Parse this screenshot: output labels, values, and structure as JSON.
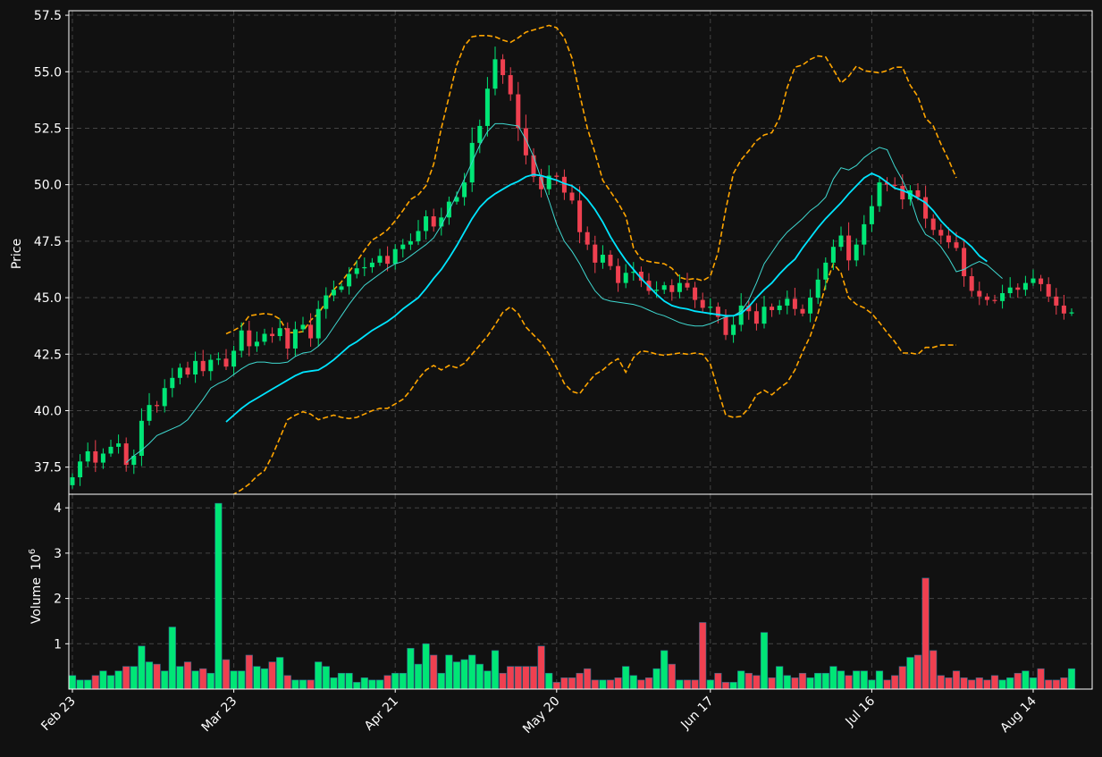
{
  "chart_data": {
    "type": "candlestick",
    "subtype": "ohlc-with-volume-and-bollinger",
    "grid": true,
    "legend": "none",
    "colors": {
      "background": "#111111",
      "up": "#00e676",
      "down": "#ef4050",
      "ma_slow": "#00e5ff",
      "ma_fast": "#3fd8d0",
      "bands": "#ffa500",
      "axis": "#ffffff",
      "grid": "#444444"
    },
    "price_panel": {
      "ylabel": "Price",
      "ylim": [
        36.3,
        57.7
      ],
      "yticks": [
        "37.5",
        "40.0",
        "42.5",
        "45.0",
        "47.5",
        "50.0",
        "52.5",
        "55.0",
        "57.5"
      ],
      "ytick_values": [
        37.5,
        40.0,
        42.5,
        45.0,
        47.5,
        50.0,
        52.5,
        55.0,
        57.5
      ]
    },
    "volume_panel": {
      "ylabel": "Volume",
      "ylabel_exponent": "10",
      "ylabel_exponent_power": "6",
      "ylim": [
        0,
        4.3
      ],
      "yticks": [
        "1",
        "2",
        "3",
        "4"
      ],
      "ytick_values": [
        1,
        2,
        3,
        4
      ]
    },
    "x_ticks": [
      {
        "label": "Feb 23",
        "index": 0
      },
      {
        "label": "Mar 23",
        "index": 21
      },
      {
        "label": "Apr 21",
        "index": 42
      },
      {
        "label": "May 20",
        "index": 63
      },
      {
        "label": "Jun 17",
        "index": 83
      },
      {
        "label": "Jul 16",
        "index": 104
      },
      {
        "label": "Aug 14",
        "index": 125
      }
    ],
    "n_bars": 131,
    "close": [
      37.05,
      37.75,
      38.2,
      37.7,
      38.1,
      38.4,
      38.55,
      37.6,
      38.0,
      39.55,
      40.25,
      40.2,
      41.0,
      41.45,
      41.9,
      41.6,
      42.2,
      41.75,
      42.25,
      42.3,
      41.95,
      42.65,
      43.55,
      42.85,
      43.05,
      43.4,
      43.3,
      43.65,
      42.75,
      43.6,
      43.8,
      43.2,
      44.5,
      45.1,
      45.35,
      45.5,
      46.05,
      46.3,
      46.35,
      46.55,
      46.85,
      46.5,
      47.15,
      47.35,
      47.5,
      47.95,
      48.6,
      48.15,
      48.55,
      49.25,
      49.45,
      50.1,
      51.85,
      52.6,
      54.25,
      55.55,
      54.85,
      54.0,
      52.5,
      51.3,
      50.35,
      49.8,
      50.4,
      50.35,
      49.65,
      49.3,
      47.9,
      47.35,
      46.55,
      46.9,
      46.4,
      45.65,
      46.1,
      46.15,
      45.75,
      45.3,
      45.35,
      45.55,
      45.25,
      45.65,
      45.45,
      44.9,
      44.55,
      44.6,
      44.15,
      43.35,
      43.8,
      44.65,
      44.4,
      43.85,
      44.6,
      44.45,
      44.65,
      44.95,
      44.5,
      44.3,
      45.0,
      45.8,
      46.55,
      47.25,
      47.75,
      46.65,
      47.35,
      48.25,
      49.05,
      50.1,
      50.0,
      49.95,
      49.35,
      49.75,
      49.45,
      48.5,
      48.0,
      47.75,
      47.45,
      47.2,
      45.95,
      45.3,
      45.05,
      44.9,
      44.85,
      45.2,
      45.45,
      45.35,
      45.65,
      45.85,
      45.6,
      45.05,
      44.65,
      44.3,
      44.35
    ],
    "volume_millions": [
      0.3,
      0.2,
      0.2,
      0.3,
      0.4,
      0.3,
      0.4,
      0.5,
      0.5,
      0.95,
      0.6,
      0.55,
      0.4,
      1.37,
      0.5,
      0.6,
      0.4,
      0.45,
      0.35,
      4.1,
      0.65,
      0.4,
      0.4,
      0.75,
      0.5,
      0.45,
      0.6,
      0.7,
      0.3,
      0.2,
      0.2,
      0.2,
      0.6,
      0.5,
      0.25,
      0.35,
      0.35,
      0.15,
      0.25,
      0.2,
      0.2,
      0.3,
      0.35,
      0.35,
      0.9,
      0.55,
      1.0,
      0.75,
      0.35,
      0.75,
      0.6,
      0.65,
      0.75,
      0.55,
      0.4,
      0.85,
      0.35,
      0.5,
      0.5,
      0.5,
      0.5,
      0.95,
      0.35,
      0.15,
      0.25,
      0.25,
      0.35,
      0.45,
      0.2,
      0.2,
      0.2,
      0.25,
      0.5,
      0.3,
      0.2,
      0.25,
      0.45,
      0.85,
      0.55,
      0.2,
      0.2,
      0.2,
      1.47,
      0.2,
      0.35,
      0.15,
      0.15,
      0.4,
      0.35,
      0.3,
      1.25,
      0.25,
      0.5,
      0.3,
      0.25,
      0.35,
      0.25,
      0.35,
      0.35,
      0.5,
      0.4,
      0.3,
      0.4,
      0.4,
      0.2,
      0.4,
      0.2,
      0.3,
      0.5,
      0.7,
      0.75,
      2.45,
      0.85,
      0.3,
      0.25,
      0.4,
      0.25,
      0.2,
      0.25,
      0.2,
      0.3,
      0.2,
      0.25,
      0.35,
      0.4,
      0.25,
      0.45,
      0.2,
      0.2,
      0.25,
      0.45
    ],
    "ma_slow_start": 20,
    "ma_slow": [
      39.5,
      39.8,
      40.1,
      40.35,
      40.55,
      40.75,
      40.95,
      41.15,
      41.35,
      41.55,
      41.7,
      41.75,
      41.8,
      42.0,
      42.25,
      42.55,
      42.85,
      43.05,
      43.3,
      43.55,
      43.75,
      43.95,
      44.2,
      44.5,
      44.75,
      45.0,
      45.4,
      45.85,
      46.25,
      46.75,
      47.3,
      47.9,
      48.5,
      49.0,
      49.35,
      49.6,
      49.8,
      50.0,
      50.15,
      50.35,
      50.45,
      50.4,
      50.3,
      50.2,
      50.05,
      49.95,
      49.7,
      49.35,
      48.9,
      48.35,
      47.7,
      47.15,
      46.65,
      46.25,
      45.85,
      45.5,
      45.15,
      44.85,
      44.65,
      44.55,
      44.5,
      44.4,
      44.35,
      44.3,
      44.25,
      44.2,
      44.2,
      44.3,
      44.6,
      45.0,
      45.35,
      45.65,
      46.05,
      46.4,
      46.7,
      47.2,
      47.65,
      48.1,
      48.5,
      48.85,
      49.2,
      49.6,
      49.95,
      50.3,
      50.5,
      50.35,
      50.1,
      49.85,
      49.75,
      49.6,
      49.4,
      49.2,
      48.85,
      48.4,
      48.05,
      47.75,
      47.55,
      47.25,
      46.85,
      46.6
    ],
    "ma_fast_start": 7,
    "ma_fast": [
      37.7,
      38.0,
      38.25,
      38.55,
      38.9,
      39.05,
      39.2,
      39.35,
      39.6,
      40.05,
      40.5,
      41.0,
      41.2,
      41.35,
      41.6,
      41.85,
      42.05,
      42.15,
      42.15,
      42.1,
      42.1,
      42.15,
      42.4,
      42.55,
      42.6,
      42.85,
      43.2,
      43.7,
      44.2,
      44.7,
      45.15,
      45.55,
      45.8,
      46.05,
      46.3,
      46.5,
      46.6,
      46.85,
      47.1,
      47.35,
      47.65,
      48.2,
      48.85,
      49.55,
      50.25,
      51.0,
      51.75,
      52.35,
      52.7,
      52.7,
      52.65,
      52.6,
      52.0,
      51.25,
      50.25,
      49.3,
      48.25,
      47.5,
      47.05,
      46.5,
      45.85,
      45.3,
      44.95,
      44.85,
      44.8,
      44.75,
      44.7,
      44.6,
      44.45,
      44.3,
      44.2,
      44.05,
      43.9,
      43.8,
      43.75,
      43.75,
      43.85,
      44.0,
      44.15,
      44.2,
      44.4,
      44.9,
      45.65,
      46.5,
      47.0,
      47.5,
      47.9,
      48.2,
      48.5,
      48.85,
      49.1,
      49.45,
      50.25,
      50.75,
      50.65,
      50.85,
      51.2,
      51.45,
      51.65,
      51.55,
      50.8,
      50.2,
      49.45,
      48.4,
      47.8,
      47.6,
      47.25,
      46.75,
      46.15,
      46.25,
      46.45,
      46.6,
      46.45,
      46.15,
      45.85
    ],
    "upper_band_start": 20,
    "upper_band": [
      43.4,
      43.55,
      43.75,
      44.2,
      44.25,
      44.3,
      44.25,
      44.05,
      43.45,
      43.45,
      43.5,
      44.0,
      44.3,
      44.8,
      45.35,
      45.7,
      46.15,
      46.6,
      47.1,
      47.55,
      47.75,
      48.0,
      48.4,
      48.85,
      49.35,
      49.55,
      49.95,
      50.9,
      52.5,
      53.9,
      55.3,
      56.15,
      56.55,
      56.6,
      56.6,
      56.55,
      56.4,
      56.3,
      56.5,
      56.75,
      56.85,
      56.95,
      57.05,
      56.95,
      56.5,
      55.6,
      54.0,
      52.5,
      51.4,
      50.2,
      49.7,
      49.2,
      48.6,
      47.2,
      46.7,
      46.6,
      46.55,
      46.5,
      46.3,
      45.9,
      45.8,
      45.85,
      45.75,
      45.95,
      47.0,
      48.9,
      50.5,
      51.1,
      51.5,
      51.95,
      52.2,
      52.3,
      52.95,
      54.3,
      55.2,
      55.3,
      55.55,
      55.7,
      55.65,
      55.1,
      54.5,
      54.8,
      55.25,
      55.05,
      55.0,
      54.95,
      55.05,
      55.2,
      55.2,
      54.4,
      53.9,
      52.95,
      52.6,
      51.8,
      51.1,
      50.3
    ],
    "lower_band_start": 20,
    "lower_band": [
      36.0,
      36.3,
      36.5,
      36.75,
      37.1,
      37.35,
      38.0,
      38.8,
      39.6,
      39.8,
      39.95,
      39.85,
      39.6,
      39.7,
      39.8,
      39.7,
      39.65,
      39.7,
      39.85,
      40.0,
      40.1,
      40.1,
      40.3,
      40.5,
      40.9,
      41.4,
      41.8,
      42.0,
      41.8,
      42.0,
      41.9,
      42.1,
      42.5,
      42.9,
      43.3,
      43.8,
      44.35,
      44.6,
      44.3,
      43.7,
      43.35,
      43.0,
      42.5,
      41.9,
      41.2,
      40.85,
      40.75,
      41.2,
      41.6,
      41.8,
      42.1,
      42.3,
      41.7,
      42.35,
      42.65,
      42.6,
      42.5,
      42.45,
      42.5,
      42.55,
      42.5,
      42.55,
      42.5,
      42.05,
      40.9,
      39.8,
      39.7,
      39.75,
      40.1,
      40.7,
      40.9,
      40.7,
      41.0,
      41.25,
      41.8,
      42.6,
      43.3,
      44.3,
      45.55,
      46.5,
      46.1,
      45.0,
      44.7,
      44.55,
      44.3,
      43.9,
      43.45,
      43.05,
      42.55,
      42.55,
      42.5,
      42.8,
      42.8,
      42.9,
      42.9,
      42.9
    ]
  }
}
